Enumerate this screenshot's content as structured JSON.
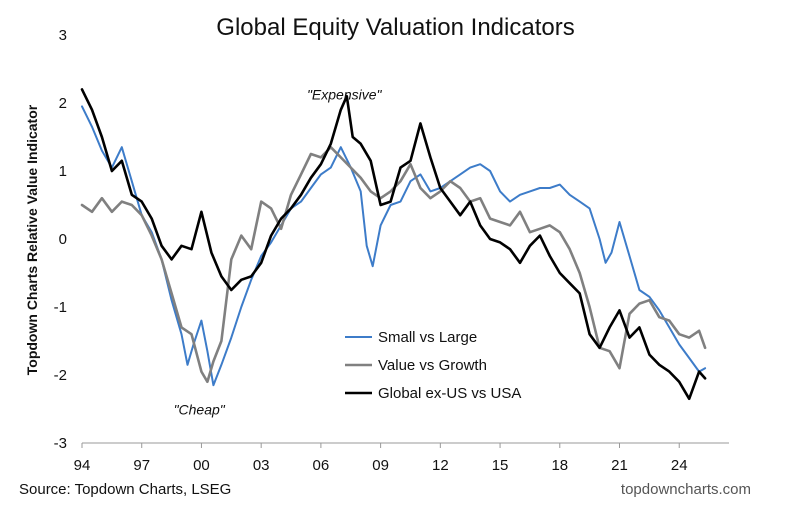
{
  "chart_data": {
    "type": "line",
    "title": "Global Equity Valuation Indicators",
    "ylabel": "Topdown Charts Relative Value Indicator",
    "xlabel": "",
    "xlim": [
      1994,
      2026.5
    ],
    "ylim": [
      -3,
      3
    ],
    "x_ticks": [
      1994,
      1997,
      2000,
      2003,
      2006,
      2009,
      2012,
      2015,
      2018,
      2021,
      2024
    ],
    "x_tick_labels": [
      "94",
      "97",
      "00",
      "03",
      "06",
      "09",
      "12",
      "15",
      "18",
      "21",
      "24"
    ],
    "y_ticks": [
      -3,
      -2,
      -1,
      0,
      1,
      2,
      3
    ],
    "y_tick_labels": [
      "-3",
      "-2",
      "-1",
      "0",
      "1",
      "2",
      "3"
    ],
    "grid": false,
    "legend_position": "bottom-right",
    "annotations": [
      {
        "text": "\"Expensive\"",
        "x": 2005.3,
        "y": 2.05
      },
      {
        "text": "\"Cheap\"",
        "x": 1998.6,
        "y": -2.58
      }
    ],
    "series": [
      {
        "name": "Small vs Large",
        "color": "#3d7cc9",
        "width": 2,
        "x": [
          1994.0,
          1994.5,
          1995.0,
          1995.5,
          1996.0,
          1996.5,
          1997.0,
          1997.5,
          1998.0,
          1998.5,
          1999.0,
          1999.3,
          1999.6,
          2000.0,
          2000.3,
          2000.6,
          2001.0,
          2001.5,
          2002.0,
          2002.5,
          2003.0,
          2003.5,
          2004.0,
          2004.5,
          2005.0,
          2005.5,
          2006.0,
          2006.5,
          2007.0,
          2007.5,
          2008.0,
          2008.3,
          2008.6,
          2009.0,
          2009.5,
          2010.0,
          2010.5,
          2011.0,
          2011.5,
          2012.0,
          2012.5,
          2013.0,
          2013.5,
          2014.0,
          2014.5,
          2015.0,
          2015.5,
          2016.0,
          2016.5,
          2017.0,
          2017.5,
          2018.0,
          2018.5,
          2019.0,
          2019.5,
          2020.0,
          2020.3,
          2020.6,
          2021.0,
          2021.5,
          2022.0,
          2022.5,
          2023.0,
          2023.5,
          2024.0,
          2024.5,
          2025.0,
          2025.3
        ],
        "y": [
          1.95,
          1.65,
          1.3,
          1.05,
          1.35,
          0.85,
          0.35,
          0.1,
          -0.3,
          -0.9,
          -1.4,
          -1.85,
          -1.55,
          -1.2,
          -1.65,
          -2.15,
          -1.85,
          -1.45,
          -1.0,
          -0.6,
          -0.25,
          -0.05,
          0.2,
          0.45,
          0.55,
          0.75,
          0.95,
          1.05,
          1.35,
          1.05,
          0.7,
          -0.1,
          -0.4,
          0.2,
          0.5,
          0.55,
          0.85,
          0.95,
          0.7,
          0.75,
          0.85,
          0.95,
          1.05,
          1.1,
          1.0,
          0.7,
          0.55,
          0.65,
          0.7,
          0.75,
          0.75,
          0.8,
          0.65,
          0.55,
          0.45,
          0.0,
          -0.35,
          -0.2,
          0.25,
          -0.25,
          -0.75,
          -0.85,
          -1.05,
          -1.3,
          -1.55,
          -1.75,
          -1.95,
          -1.9
        ]
      },
      {
        "name": "Value vs Growth",
        "color": "#808080",
        "width": 2.6,
        "x": [
          1994.0,
          1994.5,
          1995.0,
          1995.5,
          1996.0,
          1996.5,
          1997.0,
          1997.5,
          1998.0,
          1998.5,
          1999.0,
          1999.5,
          2000.0,
          2000.3,
          2000.6,
          2001.0,
          2001.5,
          2002.0,
          2002.5,
          2003.0,
          2003.5,
          2004.0,
          2004.5,
          2005.0,
          2005.5,
          2006.0,
          2006.5,
          2007.0,
          2007.5,
          2008.0,
          2008.5,
          2009.0,
          2009.5,
          2010.0,
          2010.5,
          2011.0,
          2011.5,
          2012.0,
          2012.5,
          2013.0,
          2013.5,
          2014.0,
          2014.5,
          2015.0,
          2015.5,
          2016.0,
          2016.5,
          2017.0,
          2017.5,
          2018.0,
          2018.5,
          2019.0,
          2019.5,
          2020.0,
          2020.5,
          2021.0,
          2021.5,
          2022.0,
          2022.5,
          2023.0,
          2023.5,
          2024.0,
          2024.5,
          2025.0,
          2025.3
        ],
        "y": [
          0.5,
          0.4,
          0.6,
          0.4,
          0.55,
          0.5,
          0.35,
          0.05,
          -0.3,
          -0.8,
          -1.3,
          -1.4,
          -1.95,
          -2.1,
          -1.8,
          -1.5,
          -0.3,
          0.05,
          -0.15,
          0.55,
          0.45,
          0.15,
          0.65,
          0.95,
          1.25,
          1.2,
          1.35,
          1.2,
          1.05,
          0.9,
          0.7,
          0.6,
          0.7,
          0.85,
          1.1,
          0.75,
          0.6,
          0.7,
          0.85,
          0.75,
          0.55,
          0.6,
          0.3,
          0.25,
          0.2,
          0.4,
          0.1,
          0.15,
          0.2,
          0.1,
          -0.15,
          -0.5,
          -1.0,
          -1.6,
          -1.65,
          -1.9,
          -1.1,
          -0.95,
          -0.9,
          -1.15,
          -1.2,
          -1.4,
          -1.45,
          -1.35,
          -1.6
        ]
      },
      {
        "name": "Global ex-US vs USA",
        "color": "#000000",
        "width": 2.6,
        "x": [
          1994.0,
          1994.5,
          1995.0,
          1995.5,
          1996.0,
          1996.5,
          1997.0,
          1997.5,
          1998.0,
          1998.5,
          1999.0,
          1999.5,
          2000.0,
          2000.5,
          2001.0,
          2001.5,
          2002.0,
          2002.5,
          2003.0,
          2003.5,
          2004.0,
          2004.5,
          2005.0,
          2005.5,
          2006.0,
          2006.5,
          2007.0,
          2007.3,
          2007.6,
          2008.0,
          2008.5,
          2009.0,
          2009.5,
          2010.0,
          2010.5,
          2011.0,
          2011.5,
          2012.0,
          2012.5,
          2013.0,
          2013.5,
          2014.0,
          2014.5,
          2015.0,
          2015.5,
          2016.0,
          2016.5,
          2017.0,
          2017.5,
          2018.0,
          2018.5,
          2019.0,
          2019.5,
          2020.0,
          2020.5,
          2021.0,
          2021.5,
          2022.0,
          2022.5,
          2023.0,
          2023.5,
          2024.0,
          2024.5,
          2025.0,
          2025.3
        ],
        "y": [
          2.2,
          1.9,
          1.5,
          1.0,
          1.15,
          0.65,
          0.55,
          0.3,
          -0.1,
          -0.3,
          -0.1,
          -0.15,
          0.4,
          -0.2,
          -0.55,
          -0.75,
          -0.6,
          -0.55,
          -0.35,
          0.05,
          0.3,
          0.45,
          0.65,
          0.9,
          1.1,
          1.4,
          1.9,
          2.1,
          1.5,
          1.4,
          1.15,
          0.5,
          0.55,
          1.05,
          1.15,
          1.7,
          1.2,
          0.75,
          0.55,
          0.35,
          0.55,
          0.2,
          0.0,
          -0.05,
          -0.15,
          -0.35,
          -0.1,
          0.05,
          -0.25,
          -0.5,
          -0.65,
          -0.8,
          -1.4,
          -1.6,
          -1.3,
          -1.05,
          -1.45,
          -1.3,
          -1.7,
          -1.85,
          -1.95,
          -2.1,
          -2.35,
          -1.95,
          -2.05
        ]
      }
    ]
  },
  "footer": {
    "source": "Source: Topdown Charts, LSEG",
    "site": "topdowncharts.com"
  }
}
